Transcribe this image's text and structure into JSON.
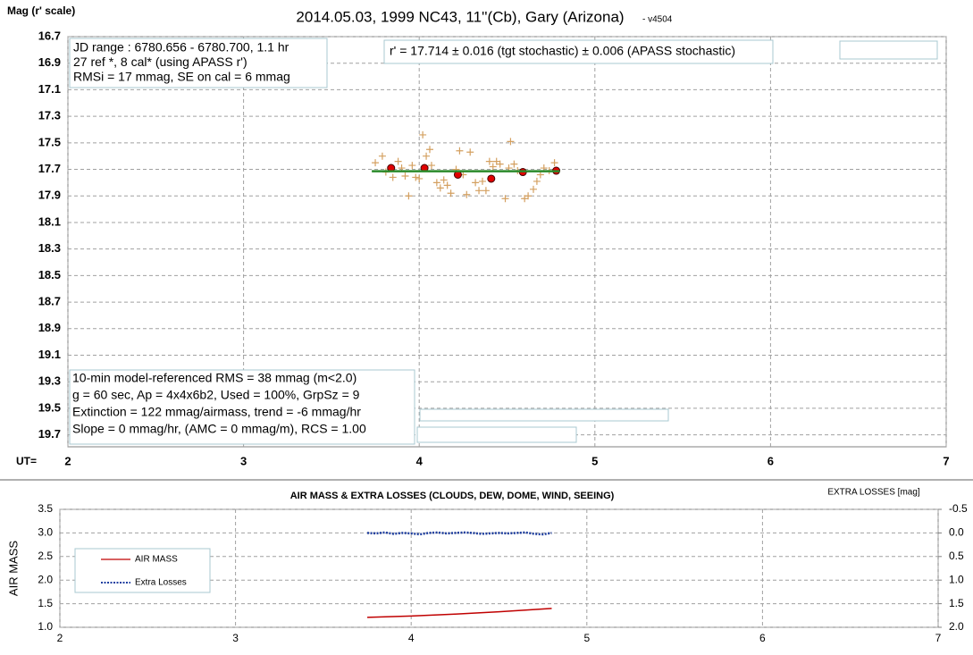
{
  "chart_data": [
    {
      "type": "scatter",
      "title": "2014.05.03, 1999 NC43, 11''(Cb), Gary (Arizona)",
      "version": "- v4504",
      "ylabel": "Mag (r' scale)",
      "xlabel": "UT=",
      "info_box": [
        "JD range : 6780.656 - 6780.700, 1.1 hr",
        " 27 ref *, 8 cal* (using APASS r')",
        "RMSi = 17 mmag, SE on cal = 6 mmag"
      ],
      "result_box": "r' = 17.714 ± 0.016 (tgt stochastic)  ± 0.006 (APASS stochastic)",
      "stats_box": [
        "10-min model-referenced RMS = 38 mmag (m<2.0)",
        " g = 60 sec, Ap = 4x4x6b2, Used = 100%, GrpSz = 9",
        " Extinction = 122 mmag/airmass, trend = -6 mmag/hr",
        "Slope = 0 mmag/hr, (AMC  = 0 mmag/m), RCS = 1.00"
      ],
      "xlim": [
        2,
        7
      ],
      "xticks": [
        2,
        3,
        4,
        5,
        6,
        7
      ],
      "ylim": [
        16.7,
        19.79
      ],
      "y_inverted": true,
      "yticks": [
        16.7,
        16.9,
        17.1,
        17.3,
        17.5,
        17.7,
        17.9,
        18.1,
        18.3,
        18.5,
        18.7,
        18.9,
        19.1,
        19.3,
        19.5,
        19.7
      ],
      "grid": true,
      "series": [
        {
          "color": "#d4a060",
          "marker": "plus",
          "x": [
            3.75,
            3.79,
            3.81,
            3.85,
            3.88,
            3.9,
            3.92,
            3.94,
            3.96,
            3.98,
            4.0,
            4.02,
            4.04,
            4.06,
            4.07,
            4.1,
            4.12,
            4.14,
            4.16,
            4.18,
            4.21,
            4.23,
            4.25,
            4.27,
            4.29,
            4.32,
            4.34,
            4.36,
            4.38,
            4.4,
            4.42,
            4.44,
            4.46,
            4.49,
            4.51,
            4.52,
            4.54,
            4.56,
            4.6,
            4.62,
            4.65,
            4.67,
            4.69,
            4.71,
            4.74,
            4.77
          ],
          "values": [
            17.65,
            17.6,
            17.72,
            17.76,
            17.64,
            17.69,
            17.75,
            17.9,
            17.67,
            17.76,
            17.77,
            17.44,
            17.6,
            17.55,
            17.67,
            17.8,
            17.84,
            17.78,
            17.82,
            17.88,
            17.7,
            17.56,
            17.74,
            17.89,
            17.57,
            17.8,
            17.86,
            17.79,
            17.86,
            17.64,
            17.68,
            17.64,
            17.66,
            17.92,
            17.69,
            17.49,
            17.66,
            17.71,
            17.92,
            17.9,
            17.85,
            17.79,
            17.74,
            17.69,
            17.71,
            17.65
          ]
        },
        {
          "color": "#e00000",
          "marker": "circle",
          "x": [
            3.84,
            4.03,
            4.22,
            4.41,
            4.59,
            4.78
          ],
          "values": [
            17.69,
            17.69,
            17.74,
            17.77,
            17.72,
            17.71
          ]
        },
        {
          "color": "#2a8a2a",
          "marker": "line",
          "x": [
            3.73,
            4.8
          ],
          "values": [
            17.714,
            17.714
          ]
        }
      ]
    },
    {
      "type": "line",
      "title": "AIR MASS & EXTRA LOSSES  (CLOUDS,  DEW,  DOME,  WIND,  SEEING)",
      "ylabel": "AIR MASS",
      "y2label": "EXTRA  LOSSES [mag]",
      "xlim": [
        2,
        7
      ],
      "xticks": [
        2,
        3,
        4,
        5,
        6,
        7
      ],
      "ylim": [
        1.0,
        3.5
      ],
      "yticks": [
        {
          "value": 1,
          "label": "1.0"
        },
        1.5,
        {
          "value": 2,
          "label": "2.0"
        },
        2.5,
        {
          "value": 3,
          "label": "3.0"
        },
        3.5
      ],
      "y2lim": [
        -0.5,
        2.0
      ],
      "y2_inverted": true,
      "y2ticks": [
        -0.5,
        {
          "value": 0,
          "label": "0.0"
        },
        0.5,
        {
          "value": 1,
          "label": "1.0"
        },
        1.5,
        {
          "value": 2,
          "label": "2.0"
        }
      ],
      "grid": true,
      "legend": "left",
      "series": [
        {
          "name": "AIR MASS",
          "color": "#c00000",
          "x": [
            3.75,
            4.0,
            4.25,
            4.5,
            4.8
          ],
          "values": [
            1.21,
            1.24,
            1.28,
            1.33,
            1.4
          ]
        },
        {
          "name": "Extra Losses",
          "color": "#1f3fa0",
          "axis": "y2",
          "dash": "dotted",
          "x": [
            3.75,
            3.8,
            3.85,
            3.9,
            3.95,
            4.0,
            4.05,
            4.1,
            4.15,
            4.2,
            4.25,
            4.3,
            4.35,
            4.4,
            4.45,
            4.5,
            4.55,
            4.6,
            4.65,
            4.7,
            4.75,
            4.8
          ],
          "values": [
            0.0,
            0.01,
            -0.01,
            0.02,
            0.0,
            0.01,
            0.03,
            0.0,
            -0.01,
            0.01,
            0.0,
            -0.01,
            0.0,
            0.02,
            0.01,
            0.0,
            0.01,
            0.0,
            -0.01,
            0.02,
            0.03,
            0.0
          ]
        }
      ]
    }
  ]
}
